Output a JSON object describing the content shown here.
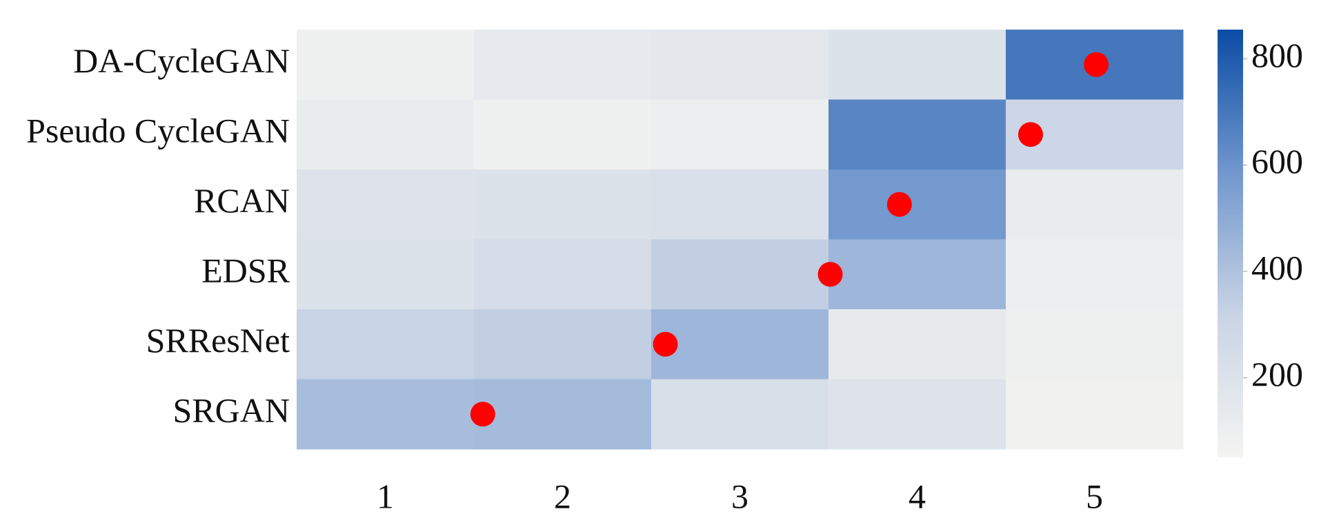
{
  "chart_data": {
    "type": "heatmap",
    "rows": [
      "DA-CycleGAN",
      "Pseudo CycleGAN",
      "RCAN",
      "EDSR",
      "SRResNet",
      "SRGAN"
    ],
    "columns": [
      "1",
      "2",
      "3",
      "4",
      "5"
    ],
    "z": [
      [
        80,
        140,
        150,
        200,
        700
      ],
      [
        110,
        80,
        100,
        650,
        300
      ],
      [
        190,
        200,
        220,
        580,
        120
      ],
      [
        200,
        240,
        340,
        450,
        100
      ],
      [
        320,
        340,
        450,
        130,
        90
      ],
      [
        420,
        430,
        230,
        190,
        70
      ]
    ],
    "colormap": [
      "#f4f4f1",
      "#c9d4e5",
      "#7197cd",
      "#0b4ca5"
    ],
    "clim": [
      50,
      855
    ],
    "cticks": [
      200,
      400,
      600,
      800
    ],
    "markers": {
      "color": "#ff0000",
      "x": [
        5.01,
        4.64,
        3.9,
        3.51,
        2.58,
        1.55
      ]
    }
  }
}
